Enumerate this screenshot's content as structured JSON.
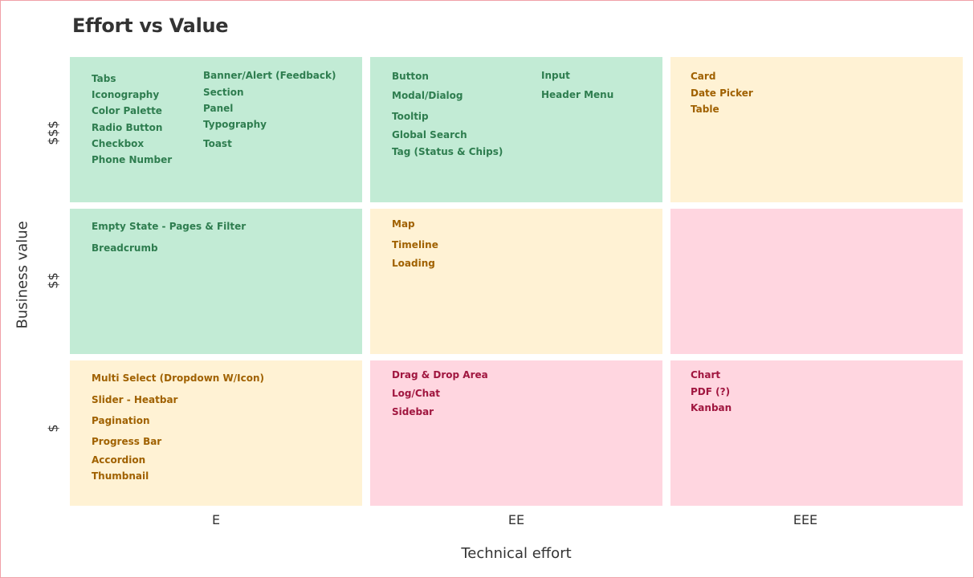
{
  "title": "Effort vs Value",
  "axes": {
    "y_label": "Business value",
    "x_label": "Technical effort",
    "rows": [
      "$$$",
      "$$",
      "$"
    ],
    "columns": [
      "E",
      "EE",
      "EEE"
    ]
  },
  "cells": {
    "high_e": [
      "Tabs",
      "Iconography",
      "Color Palette",
      "Radio Button",
      "Checkbox",
      "Phone Number",
      "Banner/Alert (Feedback)",
      "Section",
      "Panel",
      "Typography",
      "Toast"
    ],
    "high_ee": [
      "Button",
      "Modal/Dialog",
      "Tooltip",
      "Global Search",
      "Tag (Status & Chips)",
      "Input",
      "Header Menu"
    ],
    "high_eee": [
      "Card",
      "Date Picker",
      "Table"
    ],
    "mid_e": [
      "Empty State - Pages & Filter",
      "Breadcrumb"
    ],
    "mid_ee": [
      "Map",
      "Timeline",
      "Loading"
    ],
    "mid_eee": [],
    "low_e": [
      "Multi Select (Dropdown W/Icon)",
      "Slider - Heatbar",
      "Pagination",
      "Progress Bar",
      "Accordion",
      "Thumbnail"
    ],
    "low_ee": [
      "Drag & Drop Area",
      "Log/Chat",
      "Sidebar"
    ],
    "low_eee": [
      "Chart",
      "PDF (?)",
      "Kanban"
    ]
  },
  "colors": {
    "green": "#c2ebd5",
    "yellow": "#fff2d4",
    "pink": "#ffd6e0"
  }
}
